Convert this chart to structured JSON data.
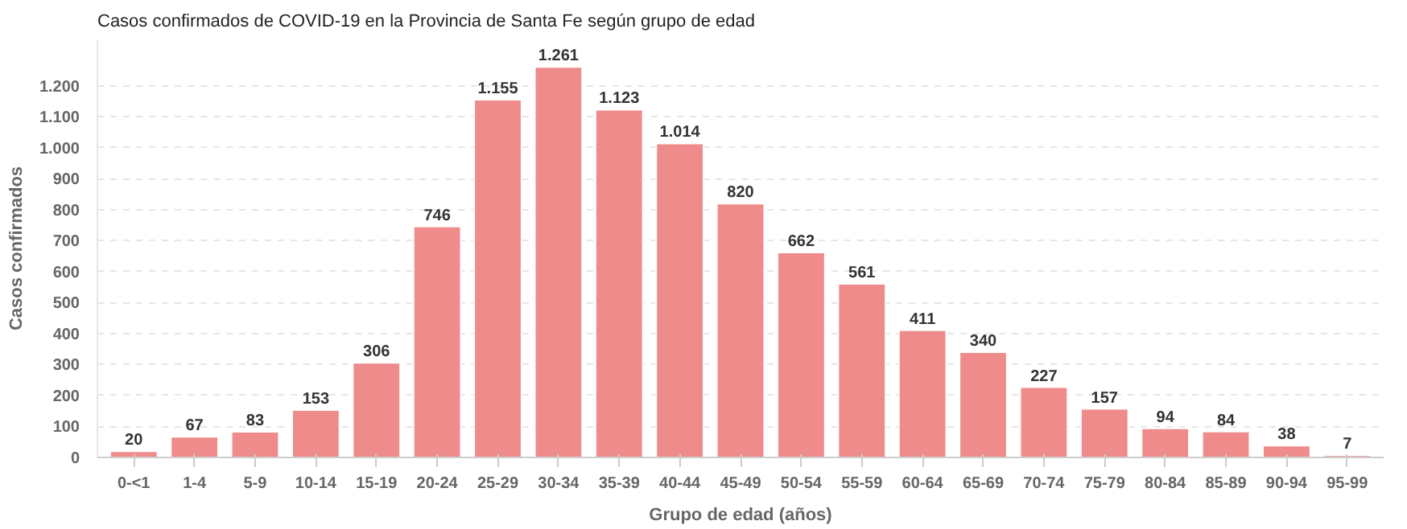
{
  "chart_data": {
    "type": "bar",
    "title": "Casos confirmados de COVID-19 en la Provincia de Santa Fe según grupo de edad",
    "xlabel": "Grupo de edad (años)",
    "ylabel": "Casos confirmados",
    "categories": [
      "0-<1",
      "1-4",
      "5-9",
      "10-14",
      "15-19",
      "20-24",
      "25-29",
      "30-34",
      "35-39",
      "40-44",
      "45-49",
      "50-54",
      "55-59",
      "60-64",
      "65-69",
      "70-74",
      "75-79",
      "80-84",
      "85-89",
      "90-94",
      "95-99"
    ],
    "values": [
      20,
      67,
      83,
      153,
      306,
      746,
      1155,
      1261,
      1123,
      1014,
      820,
      662,
      561,
      411,
      340,
      227,
      157,
      94,
      84,
      38,
      7
    ],
    "value_labels": [
      "20",
      "67",
      "83",
      "153",
      "306",
      "746",
      "1.155",
      "1.261",
      "1.123",
      "1.014",
      "820",
      "662",
      "561",
      "411",
      "340",
      "227",
      "157",
      "94",
      "84",
      "38",
      "7"
    ],
    "color": "#ef8b8b",
    "ylim": [
      0,
      1350
    ],
    "yticks": [
      0,
      100,
      200,
      300,
      400,
      500,
      600,
      700,
      800,
      900,
      {
        "value": 1000,
        "label": "1.000"
      },
      {
        "value": 1100,
        "label": "1.100"
      },
      {
        "value": 1200,
        "label": "1.200"
      }
    ],
    "grid": "y"
  }
}
